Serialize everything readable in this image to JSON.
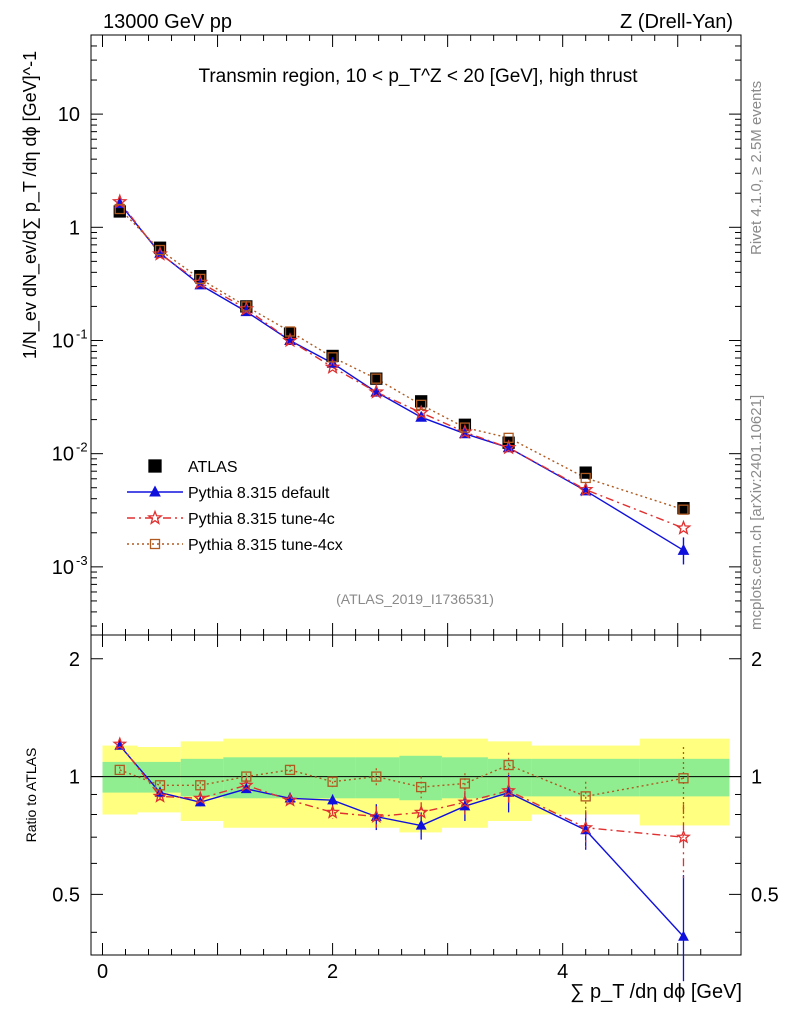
{
  "header": {
    "left": "13000 GeV pp",
    "right": "Z (Drell-Yan)"
  },
  "side": {
    "rivet": "Rivet 4.1.0, ≥ 2.5M events",
    "mcplots": "mcplots.cern.ch [arXiv:2401.10621]"
  },
  "colors": {
    "atlas": "#000000",
    "default": "#1010dd",
    "tune4c": "#e03030",
    "tune4cx": "#b05a20",
    "band_inner": "#90ee90",
    "band_outer": "#ffff80"
  },
  "chart_data": {
    "type": "scatter",
    "title": "Transmin region, 10 < p_T^Z < 20 [GeV], high thrust",
    "analysis": "(ATLAS_2019_I1736531)",
    "xlabel": "∑ p_T /dη dϕ [GeV]",
    "ylabel": "1/N_ev dN_ev/d∑ p_T /dη dϕ [GeV]^-1",
    "ratio_ylabel": "Ratio to ATLAS",
    "x_ticks": [
      "0",
      "2",
      "4"
    ],
    "main_y_ticks": [
      "10^-3",
      "10^-2",
      "10^-1",
      "1",
      "10"
    ],
    "ratio_y_ticks": [
      "0.5",
      "1",
      "2"
    ],
    "xlim": [
      -0.1,
      5.55
    ],
    "ylim_main": [
      0.00025,
      50
    ],
    "ylim_ratio": [
      0.35,
      2.3
    ],
    "legend": [
      "ATLAS",
      "Pythia 8.315 default",
      "Pythia 8.315 tune-4c",
      "Pythia 8.315 tune-4cx"
    ],
    "x": [
      0.15,
      0.5,
      0.85,
      1.25,
      1.63,
      2.0,
      2.38,
      2.77,
      3.15,
      3.53,
      4.2,
      5.05
    ],
    "bin_edges": [
      0.0,
      0.3,
      0.68,
      1.05,
      1.43,
      1.83,
      2.2,
      2.58,
      2.95,
      3.35,
      3.73,
      4.67,
      5.45
    ],
    "series": [
      {
        "name": "ATLAS",
        "values": [
          1.38,
          0.66,
          0.37,
          0.2,
          0.115,
          0.073,
          0.046,
          0.029,
          0.018,
          0.0125,
          0.0068,
          0.0033
        ]
      },
      {
        "name": "Pythia 8.315 default",
        "values": [
          1.62,
          0.59,
          0.31,
          0.18,
          0.1,
          0.063,
          0.035,
          0.021,
          0.015,
          0.0113,
          0.0047,
          0.0014
        ]
      },
      {
        "name": "Pythia 8.315 tune-4c",
        "values": [
          1.68,
          0.58,
          0.325,
          0.19,
          0.1,
          0.058,
          0.035,
          0.023,
          0.0155,
          0.0113,
          0.0048,
          0.0022
        ]
      },
      {
        "name": "Pythia 8.315 tune-4cx",
        "values": [
          1.45,
          0.63,
          0.35,
          0.2,
          0.12,
          0.071,
          0.046,
          0.027,
          0.017,
          0.0138,
          0.0061,
          0.0032
        ]
      }
    ],
    "ratios": [
      {
        "name": "Pythia 8.315 default",
        "values": [
          1.2,
          0.91,
          0.86,
          0.93,
          0.88,
          0.87,
          0.79,
          0.75,
          0.84,
          0.91,
          0.73,
          0.39
        ],
        "errors": [
          0.02,
          0.02,
          0.02,
          0.02,
          0.03,
          0.03,
          0.06,
          0.06,
          0.07,
          0.1,
          0.08,
          0.17
        ]
      },
      {
        "name": "Pythia 8.315 tune-4c",
        "values": [
          1.21,
          0.89,
          0.88,
          0.95,
          0.87,
          0.81,
          0.79,
          0.81,
          0.86,
          0.92,
          0.74,
          0.7
        ],
        "errors": [
          0.02,
          0.02,
          0.02,
          0.02,
          0.03,
          0.03,
          0.05,
          0.05,
          0.06,
          0.08,
          0.08,
          0.15
        ]
      },
      {
        "name": "Pythia 8.315 tune-4cx",
        "values": [
          1.04,
          0.95,
          0.95,
          1.0,
          1.04,
          0.97,
          1.0,
          0.94,
          0.96,
          1.07,
          0.89,
          0.99
        ],
        "errors": [
          0.02,
          0.02,
          0.02,
          0.02,
          0.03,
          0.03,
          0.05,
          0.06,
          0.06,
          0.08,
          0.08,
          0.2
        ]
      }
    ],
    "band_inner": [
      [
        0.91,
        1.09
      ],
      [
        0.91,
        1.09
      ],
      [
        0.89,
        1.11
      ],
      [
        0.88,
        1.12
      ],
      [
        0.88,
        1.12
      ],
      [
        0.88,
        1.12
      ],
      [
        0.88,
        1.12
      ],
      [
        0.87,
        1.13
      ],
      [
        0.88,
        1.12
      ],
      [
        0.89,
        1.11
      ],
      [
        0.89,
        1.11
      ],
      [
        0.89,
        1.11
      ]
    ],
    "band_outer": [
      [
        0.8,
        1.2
      ],
      [
        0.81,
        1.19
      ],
      [
        0.77,
        1.23
      ],
      [
        0.74,
        1.25
      ],
      [
        0.74,
        1.25
      ],
      [
        0.74,
        1.25
      ],
      [
        0.74,
        1.25
      ],
      [
        0.72,
        1.25
      ],
      [
        0.74,
        1.25
      ],
      [
        0.77,
        1.23
      ],
      [
        0.8,
        1.2
      ],
      [
        0.75,
        1.25
      ]
    ]
  }
}
